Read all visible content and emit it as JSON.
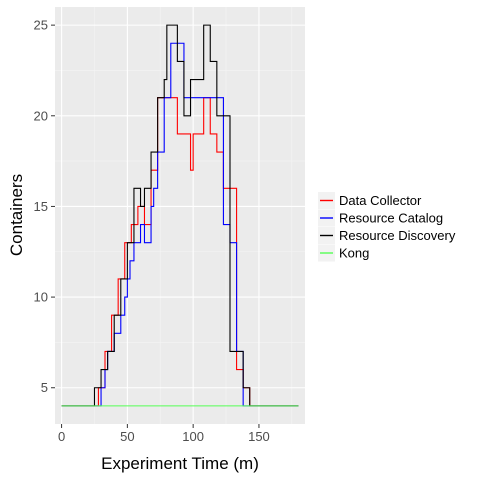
{
  "chart_data": {
    "type": "line",
    "title": "",
    "xlabel": "Experiment Time (m)",
    "ylabel": "Containers",
    "xlim": [
      -5,
      185
    ],
    "ylim": [
      3,
      26
    ],
    "x_ticks": [
      0,
      50,
      100,
      150
    ],
    "y_ticks": [
      5,
      10,
      15,
      20,
      25
    ],
    "grid": true,
    "legend_position": "right",
    "series": [
      {
        "name": "Data Collector",
        "color": "#ff0000",
        "points": [
          [
            0,
            4
          ],
          [
            28,
            4
          ],
          [
            28,
            5
          ],
          [
            33,
            5
          ],
          [
            33,
            7
          ],
          [
            38,
            7
          ],
          [
            38,
            9
          ],
          [
            43,
            9
          ],
          [
            43,
            11
          ],
          [
            48,
            11
          ],
          [
            48,
            13
          ],
          [
            53,
            13
          ],
          [
            53,
            14
          ],
          [
            58,
            14
          ],
          [
            58,
            15
          ],
          [
            63,
            15
          ],
          [
            63,
            14
          ],
          [
            68,
            14
          ],
          [
            68,
            17
          ],
          [
            73,
            17
          ],
          [
            73,
            21
          ],
          [
            88,
            21
          ],
          [
            88,
            19
          ],
          [
            98,
            19
          ],
          [
            98,
            17
          ],
          [
            100,
            17
          ],
          [
            100,
            19
          ],
          [
            108,
            19
          ],
          [
            108,
            21
          ],
          [
            113,
            21
          ],
          [
            113,
            19
          ],
          [
            118,
            19
          ],
          [
            118,
            18
          ],
          [
            123,
            18
          ],
          [
            123,
            16
          ],
          [
            133,
            16
          ],
          [
            133,
            6
          ],
          [
            138,
            6
          ],
          [
            138,
            5
          ],
          [
            143,
            5
          ],
          [
            143,
            4
          ],
          [
            180,
            4
          ]
        ]
      },
      {
        "name": "Resource Catalog",
        "color": "#0000ff",
        "points": [
          [
            0,
            4
          ],
          [
            30,
            4
          ],
          [
            30,
            5
          ],
          [
            33,
            5
          ],
          [
            33,
            6
          ],
          [
            35,
            6
          ],
          [
            35,
            7
          ],
          [
            40,
            7
          ],
          [
            40,
            8
          ],
          [
            45,
            8
          ],
          [
            45,
            9
          ],
          [
            48,
            9
          ],
          [
            48,
            10
          ],
          [
            50,
            10
          ],
          [
            50,
            11
          ],
          [
            52,
            11
          ],
          [
            52,
            12
          ],
          [
            55,
            12
          ],
          [
            55,
            13
          ],
          [
            60,
            13
          ],
          [
            60,
            14
          ],
          [
            63,
            14
          ],
          [
            63,
            13
          ],
          [
            68,
            13
          ],
          [
            68,
            15
          ],
          [
            70,
            15
          ],
          [
            70,
            16
          ],
          [
            73,
            16
          ],
          [
            73,
            18
          ],
          [
            78,
            18
          ],
          [
            78,
            21
          ],
          [
            83,
            21
          ],
          [
            83,
            24
          ],
          [
            93,
            24
          ],
          [
            93,
            21
          ],
          [
            98,
            21
          ],
          [
            98,
            21
          ],
          [
            123,
            21
          ],
          [
            123,
            14
          ],
          [
            128,
            14
          ],
          [
            128,
            13
          ],
          [
            133,
            13
          ],
          [
            133,
            7
          ],
          [
            138,
            7
          ],
          [
            138,
            4
          ],
          [
            180,
            4
          ]
        ]
      },
      {
        "name": "Resource Discovery",
        "color": "#000000",
        "points": [
          [
            0,
            4
          ],
          [
            25,
            4
          ],
          [
            25,
            5
          ],
          [
            30,
            5
          ],
          [
            30,
            6
          ],
          [
            35,
            6
          ],
          [
            35,
            7
          ],
          [
            40,
            7
          ],
          [
            40,
            9
          ],
          [
            45,
            9
          ],
          [
            45,
            11
          ],
          [
            50,
            11
          ],
          [
            50,
            13
          ],
          [
            55,
            13
          ],
          [
            55,
            16
          ],
          [
            60,
            16
          ],
          [
            60,
            15
          ],
          [
            63,
            15
          ],
          [
            63,
            16
          ],
          [
            68,
            16
          ],
          [
            68,
            18
          ],
          [
            73,
            18
          ],
          [
            73,
            21
          ],
          [
            78,
            21
          ],
          [
            78,
            22
          ],
          [
            80,
            22
          ],
          [
            80,
            25
          ],
          [
            88,
            25
          ],
          [
            88,
            23
          ],
          [
            93,
            23
          ],
          [
            93,
            20
          ],
          [
            98,
            20
          ],
          [
            98,
            22
          ],
          [
            108,
            22
          ],
          [
            108,
            25
          ],
          [
            113,
            25
          ],
          [
            113,
            23
          ],
          [
            118,
            23
          ],
          [
            118,
            20
          ],
          [
            128,
            20
          ],
          [
            128,
            7
          ],
          [
            133,
            7
          ],
          [
            133,
            7
          ],
          [
            138,
            7
          ],
          [
            138,
            5
          ],
          [
            143,
            5
          ],
          [
            143,
            4
          ],
          [
            180,
            4
          ]
        ]
      },
      {
        "name": "Kong",
        "color": "#55ff55",
        "points": [
          [
            0,
            4
          ],
          [
            180,
            4
          ]
        ]
      }
    ]
  }
}
